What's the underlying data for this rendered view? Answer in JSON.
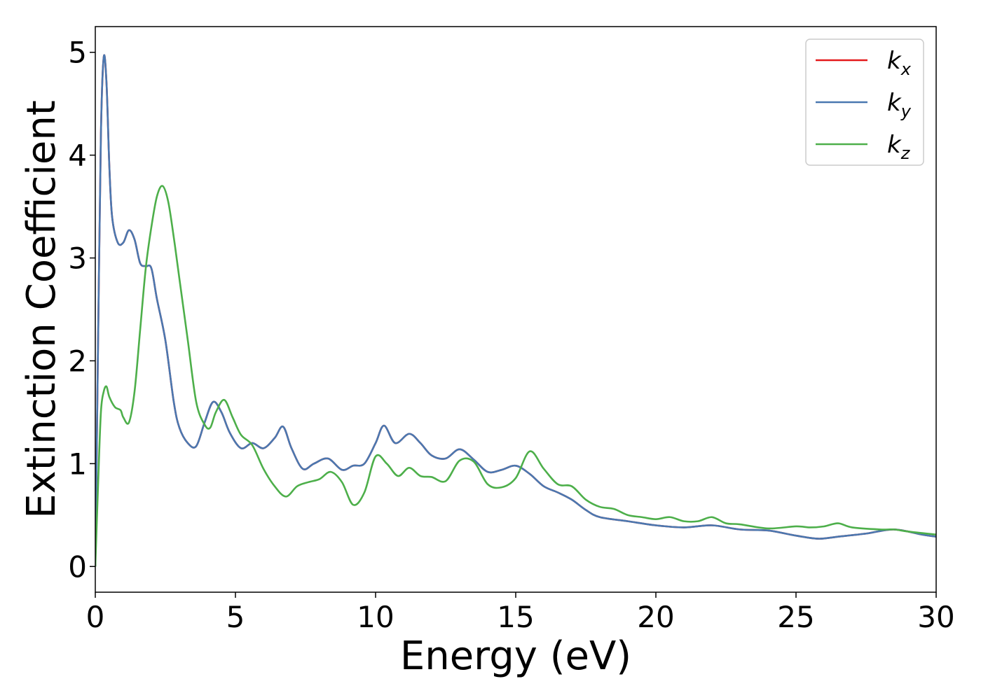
{
  "chart_data": {
    "type": "line",
    "xlabel": "Energy (eV)",
    "ylabel": "Extinction Coefficient",
    "xlim": [
      0,
      30
    ],
    "ylim": [
      -0.25,
      5.25
    ],
    "xticks": [
      0,
      5,
      10,
      15,
      20,
      25,
      30
    ],
    "yticks": [
      0,
      1,
      2,
      3,
      4,
      5
    ],
    "xtick_labels": [
      "0",
      "5",
      "10",
      "15",
      "20",
      "25",
      "30"
    ],
    "ytick_labels": [
      "0",
      "1",
      "2",
      "3",
      "4",
      "5"
    ],
    "grid": false,
    "legend_position": "top-right",
    "series": [
      {
        "name": "k_x",
        "legend_base": "k",
        "legend_sub": "x",
        "color": "#e41a1c",
        "x": [
          0,
          0.1,
          0.2,
          0.3,
          0.4,
          0.5,
          0.6,
          0.8,
          1.0,
          1.2,
          1.4,
          1.6,
          1.8,
          2.0,
          2.2,
          2.5,
          2.8,
          3.0,
          3.3,
          3.6,
          3.9,
          4.2,
          4.5,
          4.8,
          5.2,
          5.6,
          6.0,
          6.4,
          6.7,
          7.0,
          7.4,
          7.8,
          8.3,
          8.8,
          9.2,
          9.6,
          10.0,
          10.3,
          10.7,
          11.2,
          11.6,
          12.0,
          12.5,
          13.0,
          13.5,
          14.0,
          14.5,
          15.0,
          15.5,
          16.0,
          16.5,
          17.0,
          17.5,
          18.0,
          19.0,
          20.0,
          21.0,
          22.0,
          23.0,
          24.0,
          25.0,
          25.8,
          26.5,
          27.5,
          28.5,
          29.5,
          30.0
        ],
        "values": [
          0.0,
          2.2,
          4.2,
          4.95,
          4.7,
          3.9,
          3.4,
          3.15,
          3.15,
          3.27,
          3.18,
          2.95,
          2.92,
          2.9,
          2.6,
          2.2,
          1.6,
          1.35,
          1.2,
          1.17,
          1.4,
          1.6,
          1.5,
          1.3,
          1.15,
          1.2,
          1.15,
          1.25,
          1.36,
          1.15,
          0.95,
          1.0,
          1.05,
          0.94,
          0.98,
          1.0,
          1.2,
          1.37,
          1.2,
          1.29,
          1.2,
          1.08,
          1.05,
          1.14,
          1.04,
          0.92,
          0.94,
          0.98,
          0.9,
          0.78,
          0.72,
          0.65,
          0.55,
          0.48,
          0.44,
          0.4,
          0.38,
          0.4,
          0.36,
          0.35,
          0.3,
          0.27,
          0.29,
          0.32,
          0.36,
          0.31,
          0.29
        ]
      },
      {
        "name": "k_y",
        "legend_base": "k",
        "legend_sub": "y",
        "color": "#4a78b0",
        "x": [
          0,
          0.1,
          0.2,
          0.3,
          0.4,
          0.5,
          0.6,
          0.8,
          1.0,
          1.2,
          1.4,
          1.6,
          1.8,
          2.0,
          2.2,
          2.5,
          2.8,
          3.0,
          3.3,
          3.6,
          3.9,
          4.2,
          4.5,
          4.8,
          5.2,
          5.6,
          6.0,
          6.4,
          6.7,
          7.0,
          7.4,
          7.8,
          8.3,
          8.8,
          9.2,
          9.6,
          10.0,
          10.3,
          10.7,
          11.2,
          11.6,
          12.0,
          12.5,
          13.0,
          13.5,
          14.0,
          14.5,
          15.0,
          15.5,
          16.0,
          16.5,
          17.0,
          17.5,
          18.0,
          19.0,
          20.0,
          21.0,
          22.0,
          23.0,
          24.0,
          25.0,
          25.8,
          26.5,
          27.5,
          28.5,
          29.5,
          30.0
        ],
        "values": [
          0.0,
          2.2,
          4.2,
          4.95,
          4.7,
          3.9,
          3.4,
          3.15,
          3.15,
          3.27,
          3.18,
          2.95,
          2.92,
          2.9,
          2.6,
          2.2,
          1.6,
          1.35,
          1.2,
          1.17,
          1.4,
          1.6,
          1.5,
          1.3,
          1.15,
          1.2,
          1.15,
          1.25,
          1.36,
          1.15,
          0.95,
          1.0,
          1.05,
          0.94,
          0.98,
          1.0,
          1.2,
          1.37,
          1.2,
          1.29,
          1.2,
          1.08,
          1.05,
          1.14,
          1.04,
          0.92,
          0.94,
          0.98,
          0.9,
          0.78,
          0.72,
          0.65,
          0.55,
          0.48,
          0.44,
          0.4,
          0.38,
          0.4,
          0.36,
          0.35,
          0.3,
          0.27,
          0.29,
          0.32,
          0.36,
          0.31,
          0.29
        ]
      },
      {
        "name": "k_z",
        "legend_base": "k",
        "legend_sub": "z",
        "color": "#4daf4a",
        "x": [
          0,
          0.1,
          0.2,
          0.3,
          0.4,
          0.5,
          0.7,
          0.9,
          1.0,
          1.2,
          1.4,
          1.6,
          1.8,
          2.0,
          2.2,
          2.4,
          2.6,
          2.8,
          3.0,
          3.3,
          3.6,
          3.9,
          4.1,
          4.3,
          4.6,
          4.9,
          5.2,
          5.6,
          6.0,
          6.4,
          6.8,
          7.2,
          7.6,
          8.0,
          8.4,
          8.8,
          9.2,
          9.6,
          10.0,
          10.4,
          10.8,
          11.2,
          11.6,
          12.0,
          12.5,
          13.0,
          13.5,
          14.0,
          14.5,
          15.0,
          15.5,
          16.0,
          16.5,
          17.0,
          17.5,
          18.0,
          18.5,
          19.0,
          19.5,
          20.0,
          20.5,
          21.0,
          21.5,
          22.0,
          22.5,
          23.0,
          24.0,
          25.0,
          25.5,
          26.0,
          26.5,
          27.0,
          28.0,
          28.5,
          29.0,
          30.0
        ],
        "values": [
          0.0,
          0.8,
          1.5,
          1.7,
          1.75,
          1.65,
          1.55,
          1.52,
          1.45,
          1.4,
          1.7,
          2.3,
          2.9,
          3.3,
          3.6,
          3.7,
          3.55,
          3.2,
          2.8,
          2.2,
          1.6,
          1.38,
          1.35,
          1.5,
          1.62,
          1.45,
          1.28,
          1.18,
          0.95,
          0.78,
          0.68,
          0.78,
          0.82,
          0.85,
          0.92,
          0.82,
          0.6,
          0.72,
          1.07,
          1.0,
          0.88,
          0.96,
          0.88,
          0.87,
          0.83,
          1.03,
          1.02,
          0.8,
          0.77,
          0.86,
          1.12,
          0.95,
          0.8,
          0.78,
          0.65,
          0.58,
          0.56,
          0.5,
          0.48,
          0.46,
          0.48,
          0.44,
          0.44,
          0.48,
          0.42,
          0.41,
          0.37,
          0.39,
          0.38,
          0.39,
          0.42,
          0.38,
          0.36,
          0.36,
          0.34,
          0.31
        ]
      }
    ]
  }
}
